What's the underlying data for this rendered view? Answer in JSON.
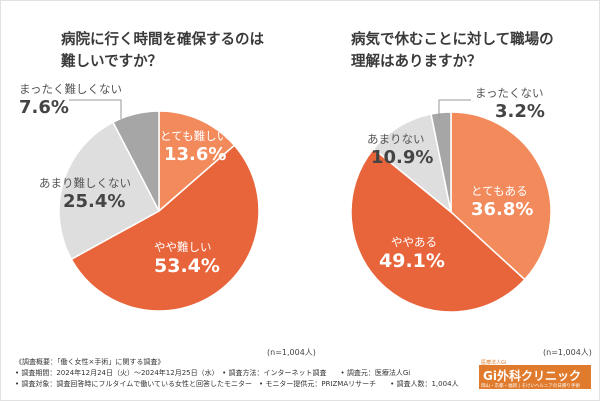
{
  "chart_data": [
    {
      "type": "pie",
      "title": "病院に行く時間を確保するのは\n難しいですか？",
      "n_label": "(n=1,004人)",
      "slices": [
        {
          "label": "とても難しい",
          "value": 13.6,
          "value_text": "13.6%",
          "color": "#f28a5c",
          "text_color": "#ffffff"
        },
        {
          "label": "やや難しい",
          "value": 53.4,
          "value_text": "53.4%",
          "color": "#e8643a",
          "text_color": "#ffffff"
        },
        {
          "label": "あまり難しくない",
          "value": 25.4,
          "value_text": "25.4%",
          "color": "#dedede",
          "text_color": "#444444"
        },
        {
          "label": "まったく難しくない",
          "value": 7.6,
          "value_text": "7.6%",
          "color": "#a6a6a6",
          "text_color": "#444444"
        }
      ]
    },
    {
      "type": "pie",
      "title": "病気で休むことに対して職場の\n理解はありますか？",
      "n_label": "(n=1,004人)",
      "slices": [
        {
          "label": "とてもある",
          "value": 36.8,
          "value_text": "36.8%",
          "color": "#f28a5c",
          "text_color": "#ffffff"
        },
        {
          "label": "ややある",
          "value": 49.1,
          "value_text": "49.1%",
          "color": "#e8643a",
          "text_color": "#ffffff"
        },
        {
          "label": "あまりない",
          "value": 10.9,
          "value_text": "10.9%",
          "color": "#dedede",
          "text_color": "#444444"
        },
        {
          "label": "まったくない",
          "value": 3.2,
          "value_text": "3.2%",
          "color": "#a6a6a6",
          "text_color": "#444444"
        }
      ]
    }
  ],
  "notes": [
    "《調査概要：「働く女性×手術」に関する調査》",
    "• 調査期間：2024年12月24日（火）〜2024年12月25日（水）　• 調査方法：インターネット調査　　• 調査元：医療法人Gi",
    "• 調査対象：調査回答時にフルタイムで働いている女性と回答したモニター　• モニター提供元：PRIZMAリサーチ　　• 調査人数：1,004人"
  ],
  "logo": {
    "tagline": "医療法人Gi",
    "name": "Gi外科クリニック",
    "sub": "岡山・京都・福岡 | そけいヘルニアの日帰り手術"
  },
  "colors": {
    "accent": "#e8643a",
    "accent_light": "#f28a5c",
    "gray_light": "#dedede",
    "gray_dark": "#a6a6a6"
  }
}
